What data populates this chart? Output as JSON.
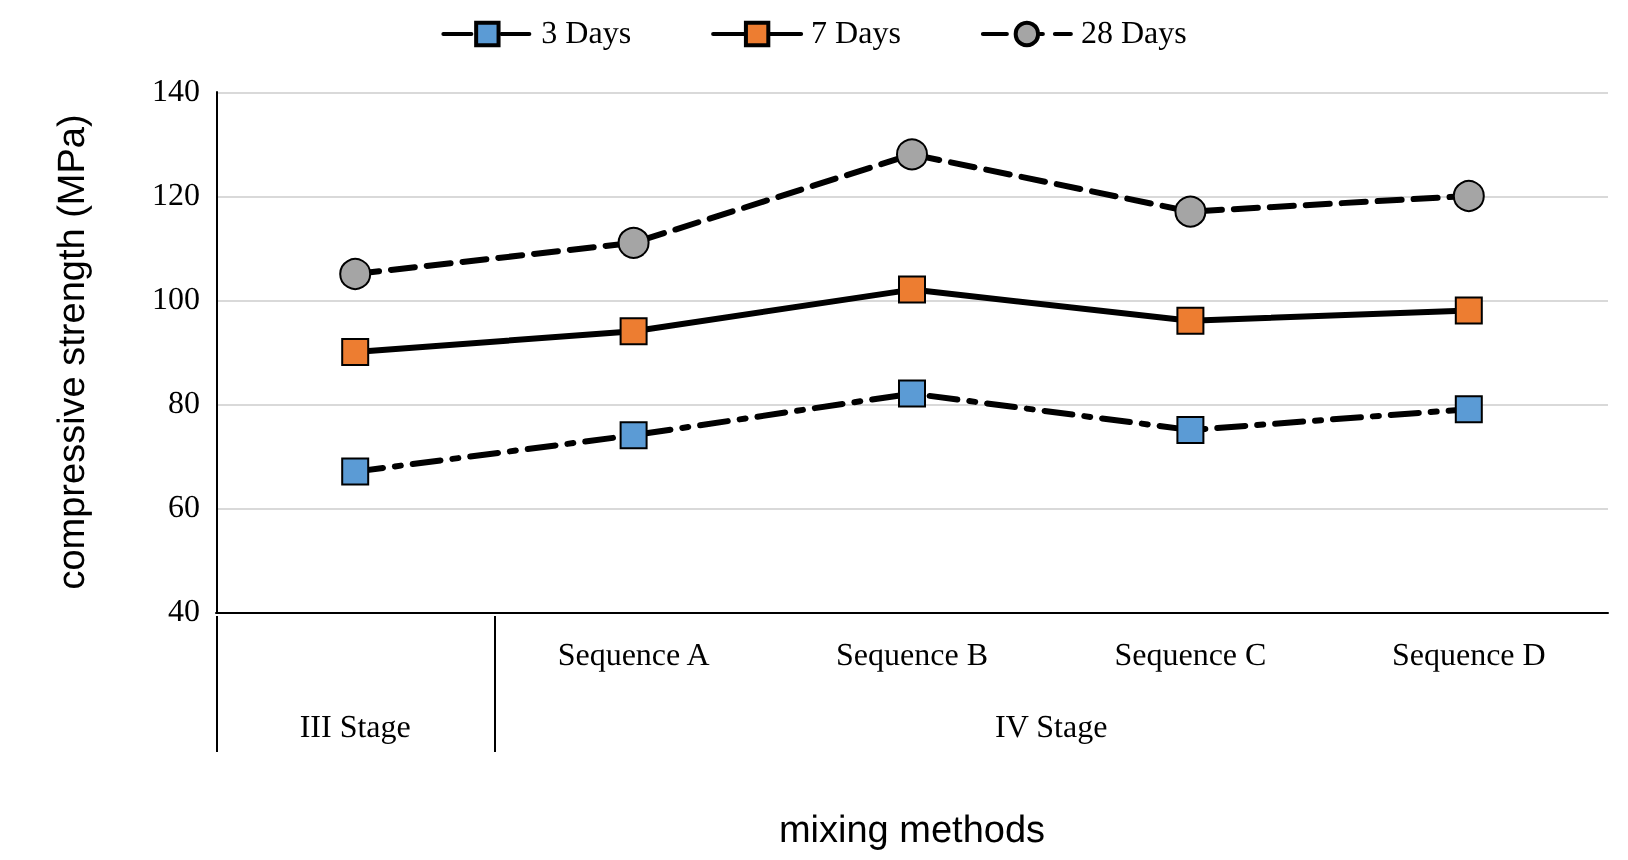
{
  "chart_data": {
    "type": "line",
    "xlabel": "mixing methods",
    "ylabel": "compressive strength (MPa)",
    "categories": [
      null,
      "Sequence A",
      "Sequence B",
      "Sequence C",
      "Sequence D"
    ],
    "annotations": [
      "III Stage",
      "IV Stage"
    ],
    "series": [
      {
        "name": "3 Days",
        "color": "#5b9bd5",
        "values": [
          67,
          74,
          82,
          75,
          79
        ],
        "marker": "square",
        "line_style": "dashdot"
      },
      {
        "name": "7 Days",
        "color": "#ed7d31",
        "values": [
          90,
          94,
          102,
          96,
          98
        ],
        "marker": "square",
        "line_style": "solid"
      },
      {
        "name": "28 Days",
        "color": "#a5a5a5",
        "values": [
          105,
          111,
          128,
          117,
          120
        ],
        "marker": "circle",
        "line_style": "dashed"
      }
    ],
    "ylim": [
      40,
      140
    ],
    "yticks": [
      40,
      60,
      80,
      100,
      120,
      140
    ],
    "grid": "y",
    "legend": "top"
  }
}
